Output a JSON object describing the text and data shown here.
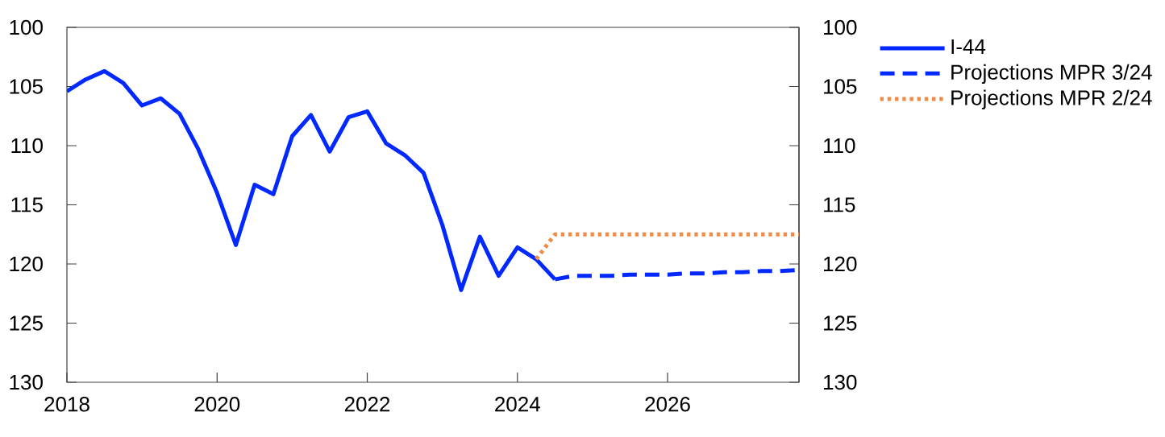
{
  "chart_data": {
    "type": "line",
    "xlim": [
      2018,
      2027.75
    ],
    "xticks": [
      2018,
      2020,
      2022,
      2024,
      2026
    ],
    "ylim": [
      130,
      100
    ],
    "yticks": [
      100,
      105,
      110,
      115,
      120,
      125,
      130
    ],
    "y2lim": [
      130,
      100
    ],
    "y2ticks": [
      100,
      105,
      110,
      115,
      120,
      125,
      130
    ],
    "legend": "top right",
    "series": [
      {
        "name": "I-44",
        "color": "#0028ff",
        "line_style": "solid",
        "x": [
          2018,
          2018.25,
          2018.5,
          2018.75,
          2019,
          2019.25,
          2019.5,
          2019.75,
          2020,
          2020.25,
          2020.5,
          2020.75,
          2021,
          2021.25,
          2021.5,
          2021.75,
          2022,
          2022.25,
          2022.5,
          2022.75,
          2023,
          2023.25,
          2023.5,
          2023.75,
          2024,
          2024.25,
          2024.5
        ],
        "values": [
          105.4,
          104.4,
          103.7,
          104.7,
          106.6,
          106.0,
          107.3,
          110.3,
          114.0,
          118.4,
          113.3,
          114.1,
          109.2,
          107.4,
          110.5,
          107.6,
          107.1,
          109.8,
          110.8,
          112.3,
          116.7,
          122.2,
          117.7,
          121.0,
          118.6,
          119.6,
          121.3
        ]
      },
      {
        "name": "Projections MPR 3/24",
        "color": "#0028ff",
        "line_style": "dashed",
        "x": [
          2024.5,
          2024.75,
          2025,
          2025.25,
          2025.5,
          2025.75,
          2026,
          2026.25,
          2026.5,
          2026.75,
          2027,
          2027.25,
          2027.5,
          2027.75
        ],
        "values": [
          121.3,
          121.0,
          121.0,
          121.0,
          120.9,
          120.9,
          120.9,
          120.8,
          120.8,
          120.7,
          120.7,
          120.6,
          120.6,
          120.5
        ]
      },
      {
        "name": "Projections MPR 2/24",
        "color": "#f08c46",
        "line_style": "dotted",
        "x": [
          2024.25,
          2024.5,
          2024.75,
          2025,
          2025.25,
          2025.5,
          2025.75,
          2026,
          2026.25,
          2026.5,
          2026.75,
          2027,
          2027.25,
          2027.5,
          2027.75
        ],
        "values": [
          119.6,
          117.5,
          117.5,
          117.5,
          117.5,
          117.5,
          117.5,
          117.5,
          117.5,
          117.5,
          117.5,
          117.5,
          117.5,
          117.5,
          117.5
        ]
      }
    ]
  }
}
